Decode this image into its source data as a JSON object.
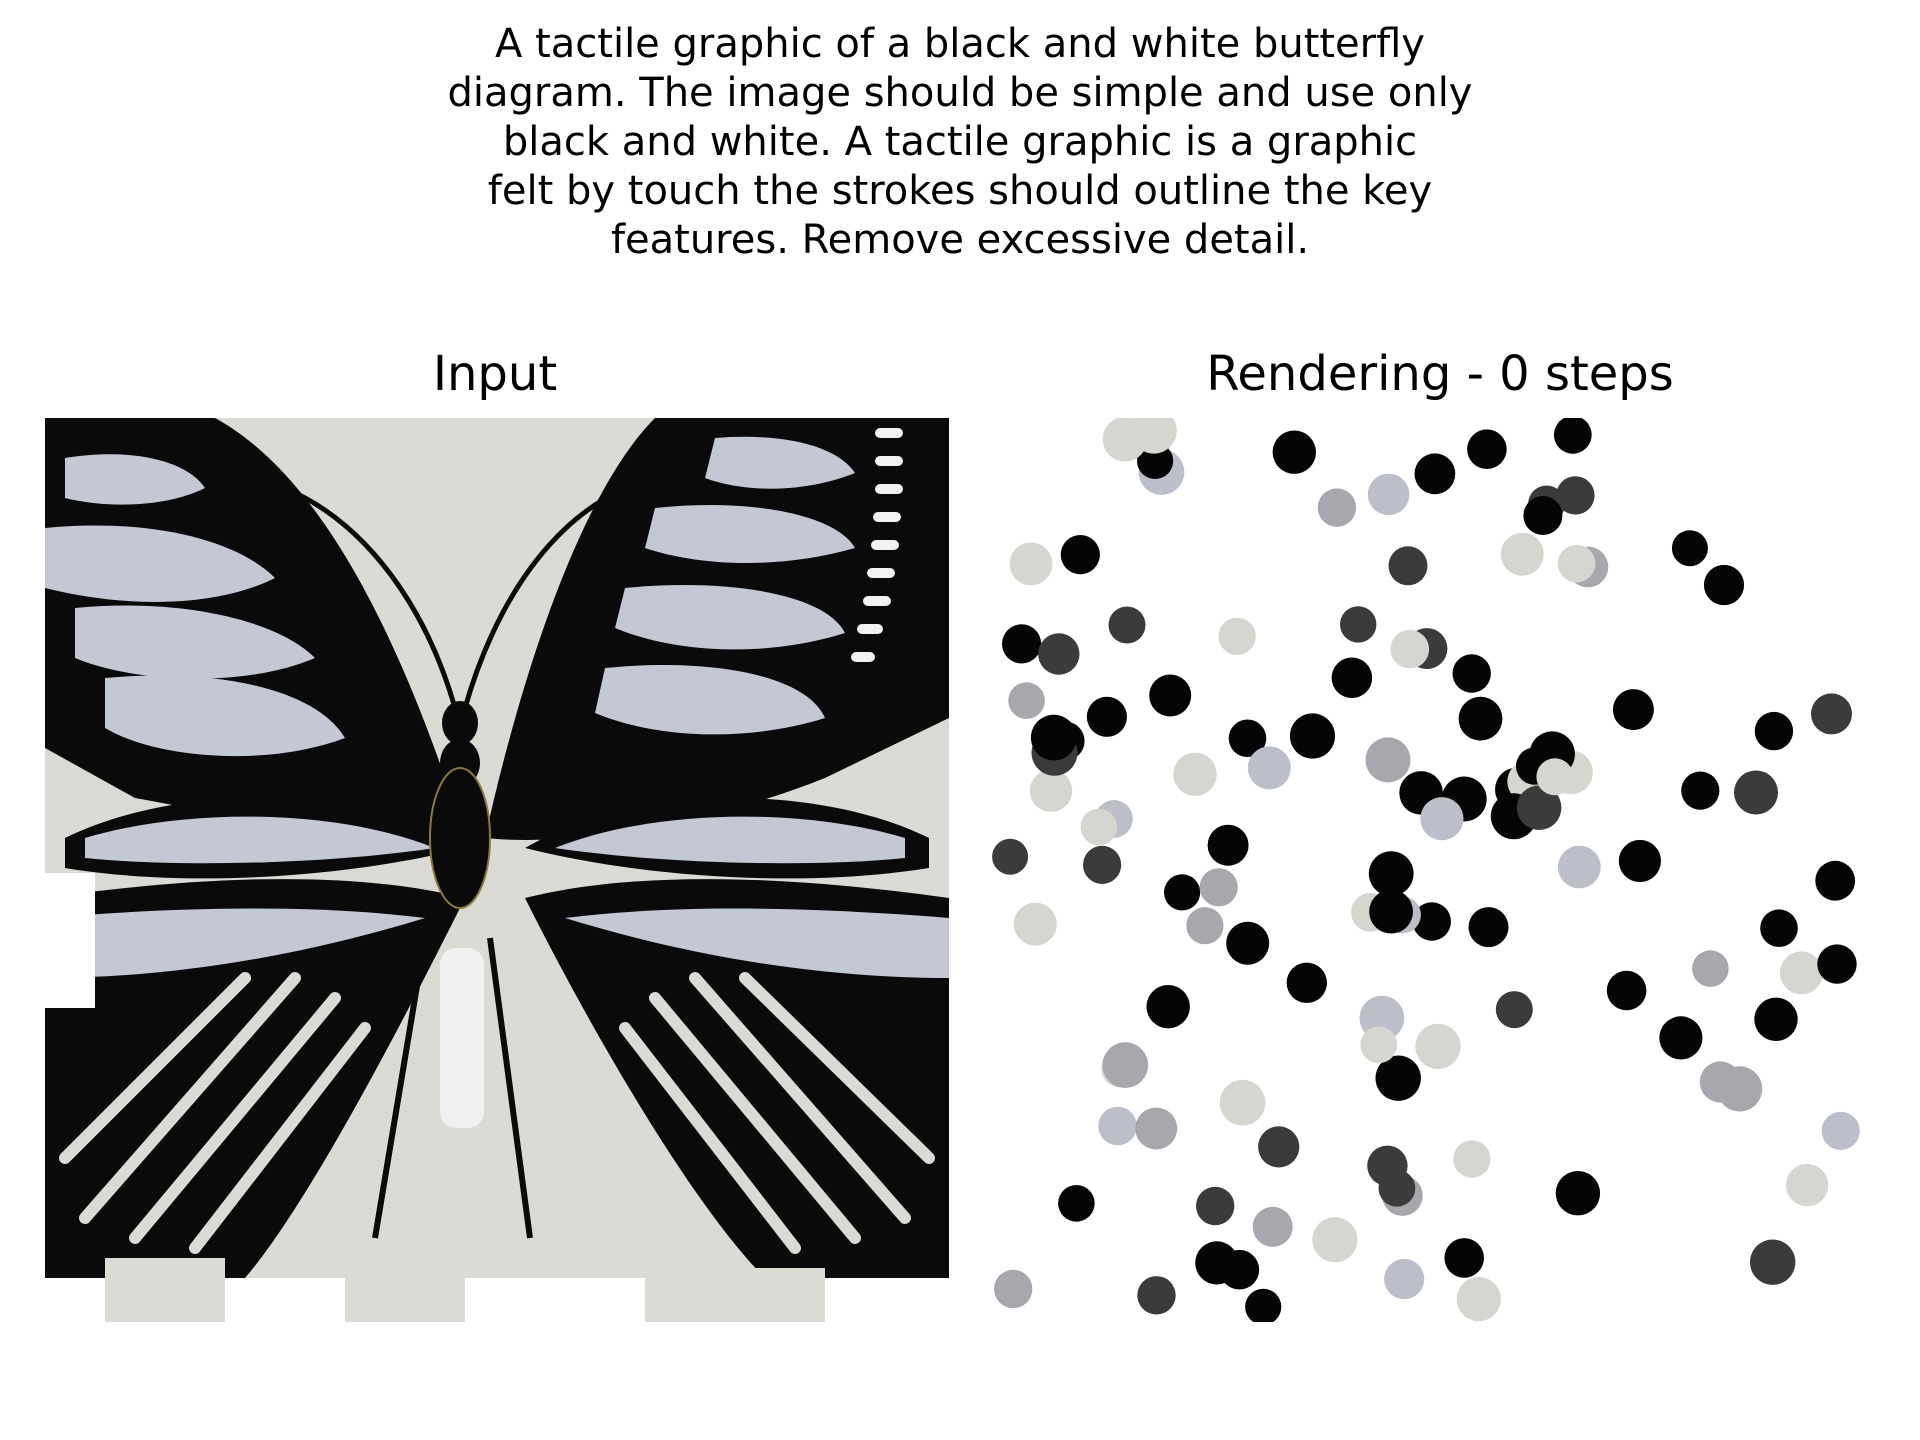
{
  "prompt": {
    "lines": [
      "A tactile graphic of a black and white butterfly",
      "diagram. The image should be simple and use only",
      "black and white. A tactile graphic is a graphic",
      "felt by touch the strokes should outline the key",
      "features. Remove excessive detail."
    ]
  },
  "panels": {
    "input_title": "Input",
    "render_title": "Rendering - 0 steps"
  },
  "colors": {
    "paper": "#dcdad5",
    "ink": "#0a0a0a",
    "wing_fill": "#c4c8d4",
    "dot_black": "#050505",
    "dot_dark": "#3c3a3a",
    "dot_mid": "#a6a8ad",
    "dot_light": "#d6d5d0",
    "dot_bluegrey": "#bcbfc9"
  }
}
